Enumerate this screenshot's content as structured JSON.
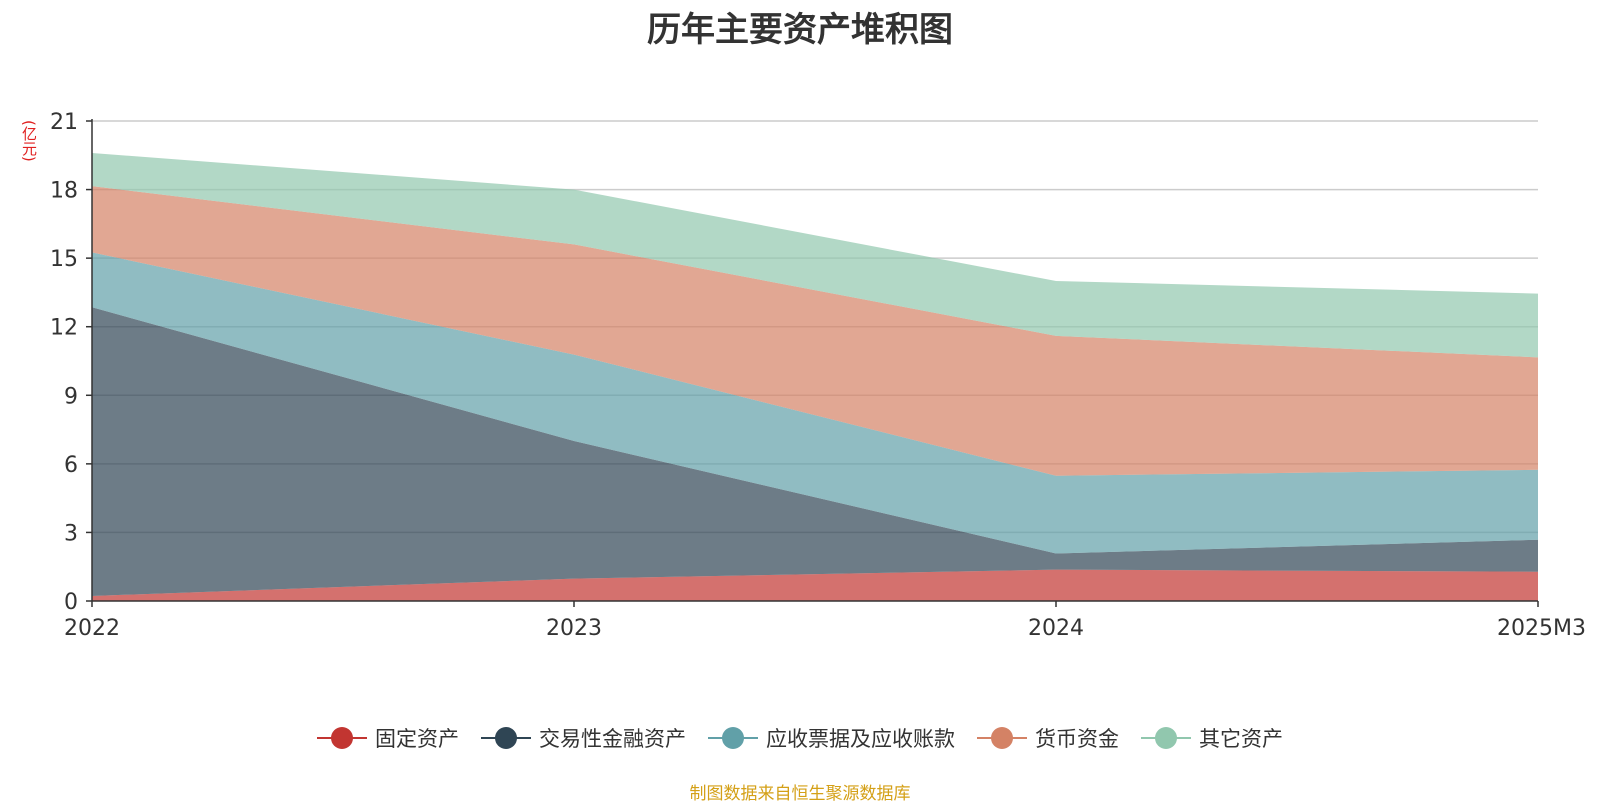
{
  "chart_data": {
    "type": "area",
    "stacked": true,
    "title": "历年主要资产堆积图",
    "ylabel": "(亿元)",
    "categories": [
      "2022",
      "2023",
      "2024",
      "2025M3"
    ],
    "yticks": [
      0,
      3,
      6,
      9,
      12,
      15,
      18,
      21
    ],
    "ylim": [
      0,
      21
    ],
    "grid": true,
    "legend_position": "bottom",
    "series": [
      {
        "name": "固定资产",
        "color": "#c23531",
        "values": [
          0.22,
          0.98,
          1.37,
          1.28
        ]
      },
      {
        "name": "交易性金融资产",
        "color": "#2f4554",
        "values": [
          12.63,
          6.02,
          0.71,
          1.4
        ]
      },
      {
        "name": "应收票据及应收账款",
        "color": "#61a0a8",
        "values": [
          2.4,
          3.78,
          3.4,
          3.06
        ]
      },
      {
        "name": "货币资金",
        "color": "#d48265",
        "values": [
          2.9,
          4.82,
          6.12,
          4.92
        ]
      },
      {
        "name": "其它资产",
        "color": "#91c7ae",
        "values": [
          1.45,
          2.4,
          2.4,
          2.79
        ]
      }
    ]
  },
  "source_note": "制图数据来自恒生聚源数据库"
}
